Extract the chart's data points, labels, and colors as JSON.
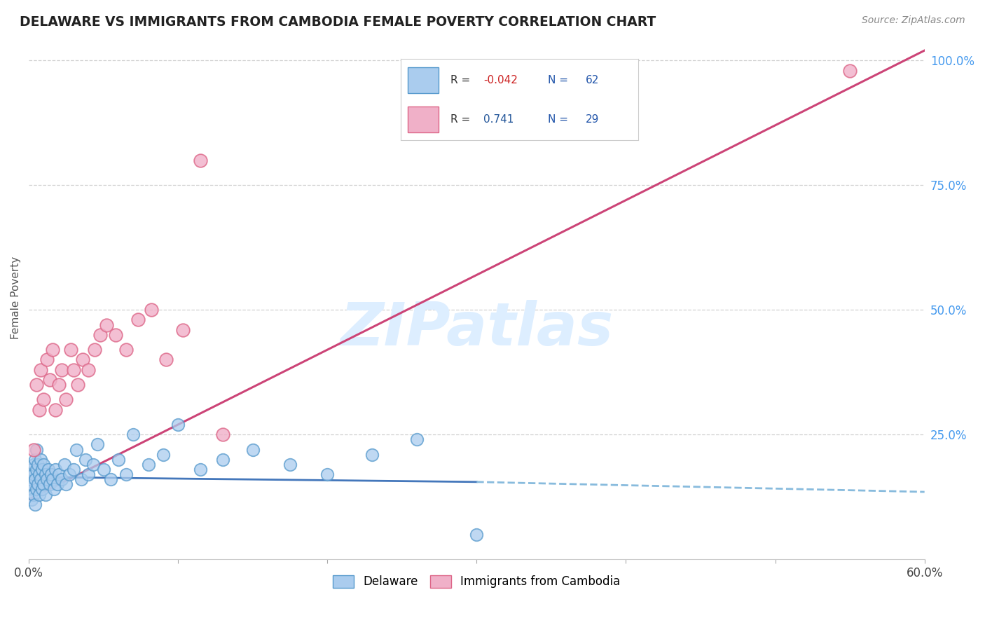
{
  "title": "DELAWARE VS IMMIGRANTS FROM CAMBODIA FEMALE POVERTY CORRELATION CHART",
  "source": "Source: ZipAtlas.com",
  "ylabel": "Female Poverty",
  "legend_r_delaware": "-0.042",
  "legend_n_delaware": "62",
  "legend_r_cambodia": "0.741",
  "legend_n_cambodia": "29",
  "color_delaware_fill": "#aaccee",
  "color_delaware_edge": "#5599cc",
  "color_delaware_line_solid": "#4477bb",
  "color_delaware_line_dash": "#88bbdd",
  "color_cambodia_fill": "#f0b0c8",
  "color_cambodia_edge": "#dd6688",
  "color_cambodia_line": "#cc4477",
  "color_title": "#222222",
  "color_source": "#888888",
  "color_ylabel": "#555555",
  "color_grid": "#cccccc",
  "color_right_tick": "#4499ee",
  "color_watermark": "#ddeeff",
  "color_legend_r_val_blue": "#cc2222",
  "color_legend_r_val_pink": "#225599",
  "color_legend_n": "#2255aa",
  "color_legend_border": "#cccccc",
  "ylabel_right_ticks": [
    0.0,
    0.25,
    0.5,
    0.75,
    1.0
  ],
  "ylabel_right_labels": [
    "",
    "25.0%",
    "50.0%",
    "75.0%",
    "100.0%"
  ],
  "delaware_x": [
    0.001,
    0.001,
    0.002,
    0.002,
    0.002,
    0.003,
    0.003,
    0.003,
    0.004,
    0.004,
    0.004,
    0.005,
    0.005,
    0.005,
    0.006,
    0.006,
    0.007,
    0.007,
    0.008,
    0.008,
    0.009,
    0.009,
    0.01,
    0.01,
    0.011,
    0.011,
    0.012,
    0.013,
    0.014,
    0.015,
    0.016,
    0.017,
    0.018,
    0.019,
    0.02,
    0.022,
    0.024,
    0.025,
    0.027,
    0.03,
    0.032,
    0.035,
    0.038,
    0.04,
    0.043,
    0.046,
    0.05,
    0.055,
    0.06,
    0.065,
    0.07,
    0.08,
    0.09,
    0.1,
    0.115,
    0.13,
    0.15,
    0.175,
    0.2,
    0.23,
    0.26,
    0.3
  ],
  "delaware_y": [
    0.14,
    0.16,
    0.12,
    0.18,
    0.15,
    0.13,
    0.17,
    0.19,
    0.11,
    0.16,
    0.2,
    0.14,
    0.18,
    0.22,
    0.15,
    0.19,
    0.13,
    0.17,
    0.16,
    0.2,
    0.14,
    0.18,
    0.15,
    0.19,
    0.13,
    0.17,
    0.16,
    0.18,
    0.15,
    0.17,
    0.16,
    0.14,
    0.18,
    0.15,
    0.17,
    0.16,
    0.19,
    0.15,
    0.17,
    0.18,
    0.22,
    0.16,
    0.2,
    0.17,
    0.19,
    0.23,
    0.18,
    0.16,
    0.2,
    0.17,
    0.25,
    0.19,
    0.21,
    0.27,
    0.18,
    0.2,
    0.22,
    0.19,
    0.17,
    0.21,
    0.24,
    0.05
  ],
  "cambodia_x": [
    0.003,
    0.005,
    0.007,
    0.008,
    0.01,
    0.012,
    0.014,
    0.016,
    0.018,
    0.02,
    0.022,
    0.025,
    0.028,
    0.03,
    0.033,
    0.036,
    0.04,
    0.044,
    0.048,
    0.052,
    0.058,
    0.065,
    0.073,
    0.082,
    0.092,
    0.103,
    0.115,
    0.13,
    0.55
  ],
  "cambodia_y": [
    0.22,
    0.35,
    0.3,
    0.38,
    0.32,
    0.4,
    0.36,
    0.42,
    0.3,
    0.35,
    0.38,
    0.32,
    0.42,
    0.38,
    0.35,
    0.4,
    0.38,
    0.42,
    0.45,
    0.47,
    0.45,
    0.42,
    0.48,
    0.5,
    0.4,
    0.46,
    0.8,
    0.25,
    0.98
  ],
  "cam_line_x0": 0.0,
  "cam_line_x1": 0.6,
  "cam_line_y0": 0.12,
  "cam_line_y1": 1.02,
  "del_line_x0_solid": 0.0,
  "del_line_x1_solid": 0.3,
  "del_line_x0_dash": 0.3,
  "del_line_x1_dash": 0.6,
  "del_line_y0": 0.165,
  "del_line_y1_solid": 0.155,
  "del_line_y1_dash": 0.135,
  "xmin": 0.0,
  "xmax": 0.6,
  "ymin": 0.0,
  "ymax": 1.05,
  "figwidth": 14.06,
  "figheight": 8.92,
  "dpi": 100
}
